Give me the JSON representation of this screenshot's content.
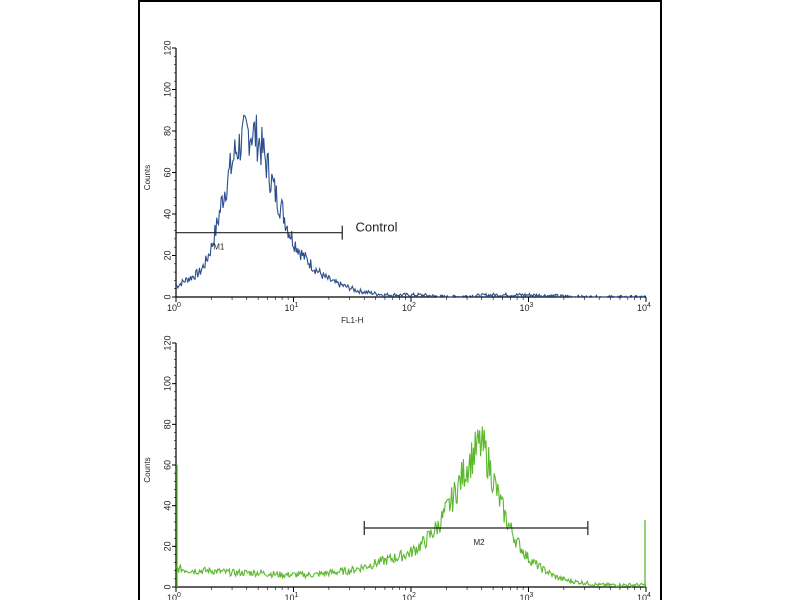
{
  "chart_data": [
    {
      "type": "line",
      "title": "",
      "xlabel": "FL1-H",
      "ylabel": "Counts",
      "x_scale": "log",
      "xlim": [
        1,
        10000
      ],
      "ylim": [
        0,
        120
      ],
      "y_ticks": [
        0,
        20,
        40,
        60,
        80,
        100,
        120
      ],
      "x_ticks": [
        1,
        10,
        100,
        1000,
        10000
      ],
      "x_tick_labels": [
        {
          "base": "10",
          "exp": "0"
        },
        {
          "base": "10",
          "exp": "1"
        },
        {
          "base": "10",
          "exp": "2"
        },
        {
          "base": "10",
          "exp": "3"
        },
        {
          "base": "10",
          "exp": "4"
        }
      ],
      "grid": false,
      "color": "#2b4f8c",
      "series": [
        {
          "x": [
            1,
            1.2,
            1.4,
            1.6,
            1.8,
            2.0,
            2.2,
            2.5,
            2.8,
            3.2,
            3.6,
            4.0,
            4.5,
            5.0,
            5.5,
            6.0,
            7.0,
            8.0,
            9.0,
            10,
            12,
            15,
            18,
            22,
            28,
            35,
            45,
            60,
            80,
            120,
            200,
            500,
            1000,
            3000,
            10000
          ],
          "y": [
            5,
            8,
            10,
            12,
            17,
            24,
            33,
            48,
            58,
            70,
            75,
            79,
            80,
            76,
            70,
            63,
            50,
            42,
            33,
            27,
            20,
            14,
            10,
            7,
            5,
            3,
            2,
            1,
            1,
            1,
            0,
            1,
            1,
            0,
            0
          ]
        }
      ],
      "markers": [
        {
          "label": "M1",
          "x_start": 1,
          "x_end": 26,
          "y": 31
        }
      ],
      "annotations": [
        {
          "text": "Control",
          "x": 30,
          "y": 32
        }
      ]
    },
    {
      "type": "line",
      "title": "",
      "xlabel": "",
      "ylabel": "Counts",
      "x_scale": "log",
      "xlim": [
        1,
        10000
      ],
      "ylim": [
        0,
        120
      ],
      "y_ticks": [
        0,
        20,
        40,
        60,
        80,
        100,
        120
      ],
      "x_ticks": [
        1,
        10,
        100,
        1000,
        10000
      ],
      "x_tick_labels": [
        {
          "base": "10",
          "exp": "0"
        },
        {
          "base": "10",
          "exp": "1"
        },
        {
          "base": "10",
          "exp": "2"
        },
        {
          "base": "10",
          "exp": "3"
        },
        {
          "base": "10",
          "exp": "4"
        }
      ],
      "grid": false,
      "color": "#5cb82e",
      "series": [
        {
          "x": [
            1,
            1.5,
            2,
            3,
            5,
            8,
            10,
            15,
            20,
            30,
            40,
            60,
            80,
            100,
            130,
            170,
            220,
            280,
            330,
            380,
            420,
            480,
            550,
            650,
            800,
            1000,
            1300,
            1700,
            2200,
            3000,
            4000,
            6000,
            10000
          ],
          "y": [
            9,
            8,
            8,
            7,
            7,
            6,
            6,
            6,
            7,
            8,
            10,
            13,
            15,
            17,
            22,
            30,
            42,
            56,
            64,
            70,
            68,
            57,
            45,
            33,
            22,
            14,
            9,
            5,
            3,
            2,
            1,
            1,
            1
          ],
          "edge_spikes": [
            {
              "x": 1,
              "y": 60
            },
            {
              "x": 10000,
              "y": 33
            }
          ]
        }
      ],
      "markers": [
        {
          "label": "M2",
          "x_start": 40,
          "x_end": 3200,
          "y": 29
        }
      ],
      "annotations": []
    }
  ]
}
